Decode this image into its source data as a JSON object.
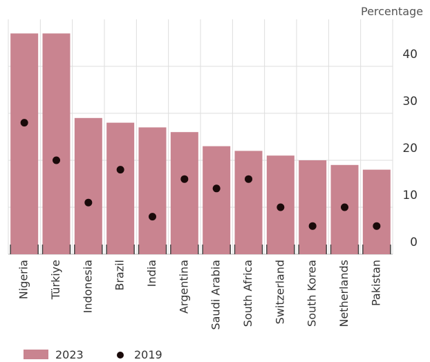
{
  "chart_data": {
    "type": "bar_dot",
    "y_axis_label": "Percentage",
    "categories": [
      "Nigeria",
      "Türkiye",
      "Indonesia",
      "Brazil",
      "India",
      "Argentina",
      "Saudi Arabia",
      "South Africa",
      "Switzerland",
      "South Korea",
      "Netherlands",
      "Pakistan"
    ],
    "series": [
      {
        "name": "2023",
        "color": "#c98490",
        "values": [
          47,
          47,
          29,
          28,
          27,
          26,
          23,
          22,
          21,
          20,
          19,
          18
        ]
      },
      {
        "name": "2019",
        "color": "#1a0a0a",
        "values": [
          28,
          20,
          11,
          18,
          8,
          16,
          14,
          16,
          10,
          6,
          10,
          6
        ]
      }
    ],
    "ylim": [
      0,
      50
    ],
    "yticks": [
      0,
      10,
      20,
      30,
      40
    ],
    "grid": true,
    "y_axis_side": "right"
  }
}
